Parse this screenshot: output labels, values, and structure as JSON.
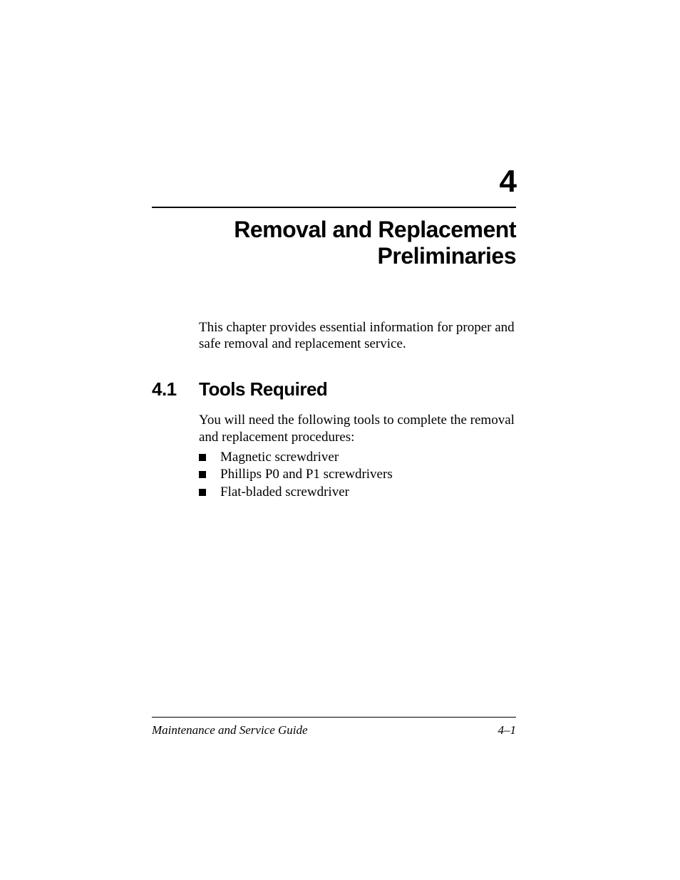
{
  "chapter": {
    "number": "4",
    "title_line1": "Removal and Replacement",
    "title_line2": "Preliminaries"
  },
  "intro": "This chapter provides essential information for proper and safe removal and replacement service.",
  "section": {
    "number": "4.1",
    "title": "Tools Required",
    "text": "You will need the following tools to complete the removal and replacement procedures:",
    "items": [
      "Magnetic screwdriver",
      "Phillips P0 and P1 screwdrivers",
      "Flat-bladed screwdriver"
    ]
  },
  "footer": {
    "left": "Maintenance and Service Guide",
    "right": "4–1"
  },
  "styles": {
    "page_bg": "#ffffff",
    "text_color": "#000000",
    "chapter_number_fontsize": 44,
    "chapter_title_fontsize": 32,
    "body_fontsize": 19,
    "section_heading_fontsize": 26,
    "footer_fontsize": 17,
    "heading_font": "Arial Black",
    "body_font": "Times New Roman"
  }
}
